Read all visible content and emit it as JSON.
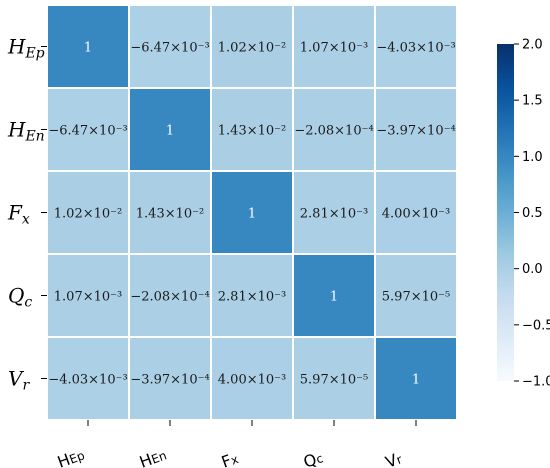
{
  "chart_data": {
    "type": "heatmap",
    "row_labels": [
      {
        "main": "H",
        "sub": "Ep"
      },
      {
        "main": "H",
        "sub": "En"
      },
      {
        "main": "F",
        "sub": "x"
      },
      {
        "main": "Q",
        "sub": "c"
      },
      {
        "main": "V",
        "sub": "r"
      }
    ],
    "col_labels": [
      {
        "main": "H",
        "sub": "Ep"
      },
      {
        "main": "H",
        "sub": "En"
      },
      {
        "main": "F",
        "sub": "x"
      },
      {
        "main": "Q",
        "sub": "c"
      },
      {
        "main": "V",
        "sub": "r"
      }
    ],
    "values": [
      [
        1,
        -0.00647,
        0.0102,
        0.00107,
        -0.00403
      ],
      [
        -0.00647,
        1,
        0.0143,
        -0.000208,
        -0.000397
      ],
      [
        0.0102,
        0.0143,
        1,
        0.00281,
        0.004
      ],
      [
        0.00107,
        -0.000208,
        0.00281,
        1,
        5.97e-05
      ],
      [
        -0.00403,
        -0.000397,
        0.004,
        5.97e-05,
        1
      ]
    ],
    "cell_text": [
      [
        "1",
        "−6.47×10⁻³",
        "1.02×10⁻²",
        "1.07×10⁻³",
        "−4.03×10⁻³"
      ],
      [
        "−6.47×10⁻³",
        "1",
        "1.43×10⁻²",
        "−2.08×10⁻⁴",
        "−3.97×10⁻⁴"
      ],
      [
        "1.02×10⁻²",
        "1.43×10⁻²",
        "1",
        "2.81×10⁻³",
        "4.00×10⁻³"
      ],
      [
        "1.07×10⁻³",
        "−2.08×10⁻⁴",
        "2.81×10⁻³",
        "1",
        "5.97×10⁻⁵"
      ],
      [
        "−4.03×10⁻³",
        "−3.97×10⁻⁴",
        "4.00×10⁻³",
        "5.97×10⁻⁵",
        "1"
      ]
    ],
    "colorbar": {
      "vmin": -1.0,
      "vmax": 2.0,
      "ticks": [
        2.0,
        1.5,
        1.0,
        0.5,
        0.0,
        -0.5,
        -1.0
      ],
      "tick_labels": [
        "2.0",
        "1.5",
        "1.0",
        "0.5",
        "0.0",
        "−0.5",
        "−1.0"
      ],
      "colormap": "Blues"
    }
  }
}
